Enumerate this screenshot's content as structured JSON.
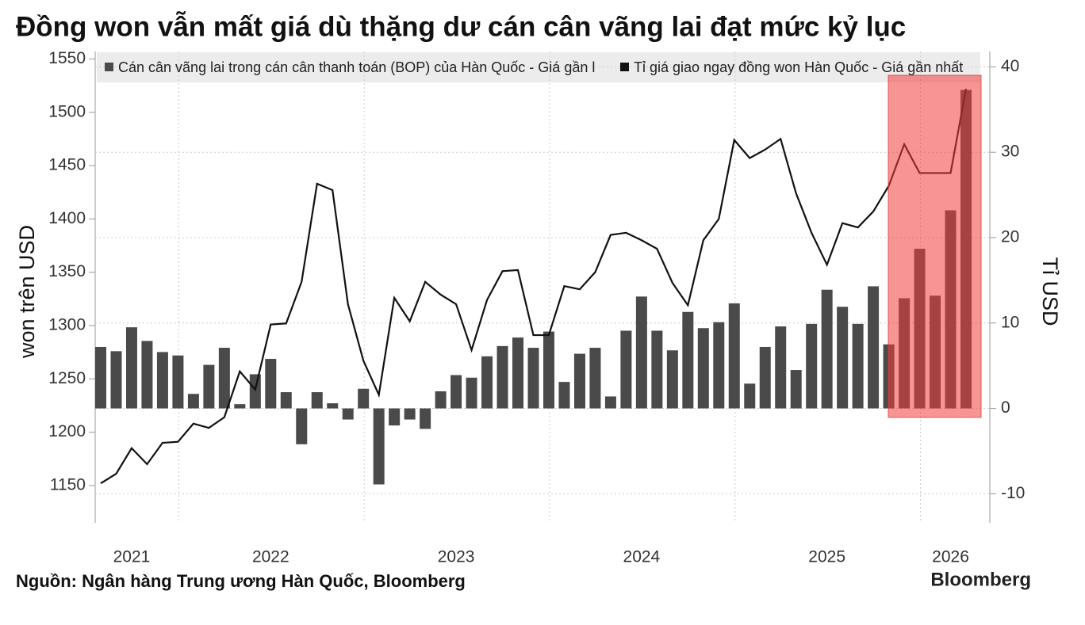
{
  "chart_data": {
    "type": "combo",
    "title": "Đồng won vẫn mất giá dù thặng dư cán cân vãng lai đạt mức kỷ lục",
    "y_label": "won trên USD",
    "y2_label": "Tỉ USD",
    "source": "Nguồn: Ngân hàng Trung ương Hàn Quốc, Bloomberg",
    "brand": "Bloomberg",
    "legend": "top",
    "grid": true,
    "categories": [
      null,
      null,
      "2021",
      null,
      null,
      null,
      null,
      null,
      null,
      null,
      null,
      "2022",
      null,
      null,
      null,
      null,
      null,
      null,
      null,
      null,
      null,
      null,
      null,
      "2023",
      null,
      null,
      null,
      null,
      null,
      null,
      null,
      null,
      null,
      null,
      null,
      "2024",
      null,
      null,
      null,
      null,
      null,
      null,
      null,
      null,
      null,
      null,
      null,
      "2025",
      null,
      null,
      null,
      null,
      null,
      null,
      null,
      "2026",
      null
    ],
    "ylim": [
      1115,
      1557
    ],
    "yticks": [
      1150,
      1200,
      1250,
      1300,
      1350,
      1400,
      1450,
      1500,
      1550
    ],
    "y2lim": [
      -13.4,
      41.8
    ],
    "y2ticks": [
      -10,
      0,
      10,
      20,
      30,
      40
    ],
    "series": [
      {
        "name": "Cán cân vãng lai trong cán cân thanh toán (BOP) của Hàn Quốc - Giá gần l",
        "type": "bar",
        "axis": "y2",
        "color": "#4a4a4a",
        "values": [
          7.2,
          6.7,
          9.5,
          7.9,
          6.6,
          6.2,
          1.7,
          5.1,
          7.1,
          0.5,
          4.0,
          5.8,
          1.9,
          -4.2,
          1.9,
          0.6,
          -1.3,
          2.3,
          -8.9,
          -2.0,
          -1.3,
          -2.4,
          2.0,
          3.9,
          3.6,
          6.1,
          7.3,
          8.3,
          7.1,
          9.0,
          3.1,
          6.4,
          7.1,
          1.4,
          9.1,
          13.1,
          9.1,
          6.8,
          11.3,
          9.4,
          10.1,
          12.3,
          2.9,
          7.2,
          9.6,
          4.5,
          9.9,
          13.9,
          11.9,
          9.9,
          14.3,
          7.5,
          12.9,
          18.7,
          13.2,
          23.2,
          37.3
        ]
      },
      {
        "name": "Tỉ giá giao ngay đồng won Hàn Quốc - Giá gần nhất",
        "type": "line",
        "color": "#111111",
        "values": [
          1152,
          1161,
          1185,
          1170,
          1190,
          1191,
          1208,
          1204,
          1214,
          1257,
          1240,
          1301,
          1302,
          1341,
          1433,
          1427,
          1320,
          1267,
          1235,
          1326,
          1304,
          1341,
          1329,
          1320,
          1277,
          1324,
          1351,
          1352,
          1291,
          1291,
          1337,
          1334,
          1350,
          1385,
          1387,
          1380,
          1372,
          1340,
          1319,
          1380,
          1400,
          1474,
          1457,
          1465,
          1475,
          1424,
          1387,
          1357,
          1396,
          1392,
          1407,
          1431,
          1470,
          1443,
          1443,
          1443,
          1522
        ]
      }
    ]
  }
}
